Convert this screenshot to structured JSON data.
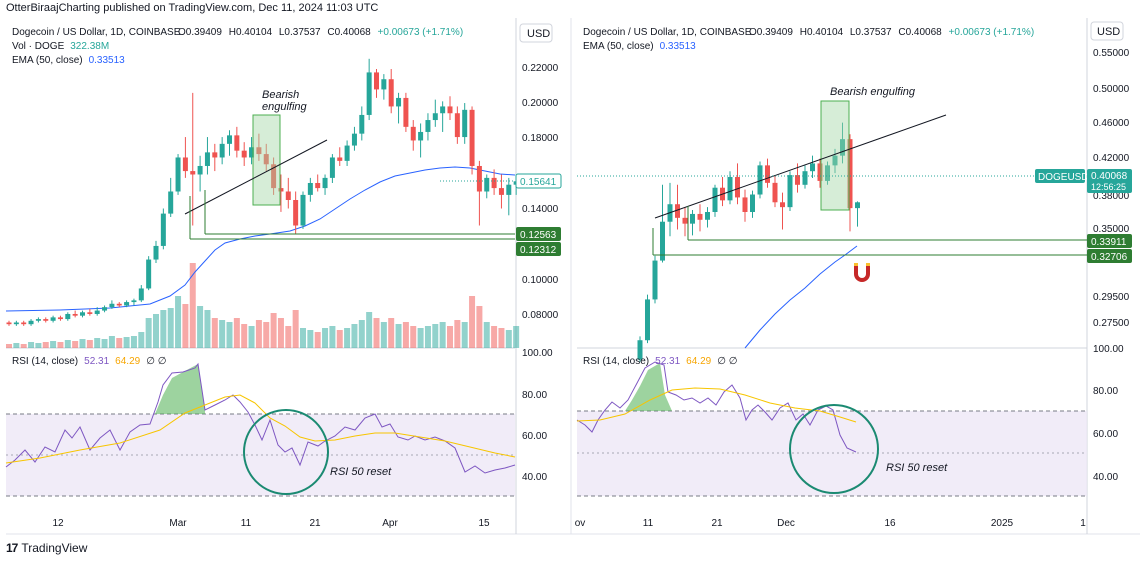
{
  "header": {
    "publisher": "OtterBiraajCharting published on TradingView.com, Dec 11, 2024 11:03 UTC"
  },
  "footer": {
    "brand": "TradingView"
  },
  "colors": {
    "up": "#26a69a",
    "down": "#ef5350",
    "ema": "#2962ff",
    "rsi": "#7e57c2",
    "rsi_ma": "#f7c500",
    "support": "#2e7d32",
    "circle": "#1b8a72",
    "text": "#131722"
  },
  "chart_data": [
    {
      "type": "candlestick",
      "panel": "left",
      "symbol_line": "Dogecoin / US Dollar, 1D, COINBASE",
      "ohlc_label": {
        "o": "O0.39409",
        "h": "H0.40104",
        "l": "L0.37537",
        "c": "C0.40068",
        "chg": "+0.00673 (+1.71%)"
      },
      "vol_label": "Vol · DOGE",
      "vol_value": "322.38M",
      "ema_label": "EMA (50, close)",
      "ema_value": "0.33513",
      "currency": "USD",
      "ylim": [
        0.058,
        0.232
      ],
      "y_ticks": [
        "0.22000",
        "0.20000",
        "0.18000",
        "0.14000",
        "0.10000",
        "0.08000"
      ],
      "x_ticks": [
        "12",
        "Mar",
        "11",
        "21",
        "Apr",
        "15"
      ],
      "price_badges": [
        {
          "label": "0.15641",
          "value": 0.15641,
          "style": "outline"
        },
        {
          "label": "0.12563",
          "value": 0.12563,
          "style": "green"
        },
        {
          "label": "0.12312",
          "value": 0.12312,
          "style": "green"
        }
      ],
      "annotations": [
        "Bearish",
        "engulfing",
        "RSI 50 reset"
      ],
      "rsi_label": "RSI (14, close)",
      "rsi_value": "52.31",
      "rsi_ma_value": "64.29",
      "rsi_nil": "∅ ∅",
      "rsi_ticks": [
        "100.00",
        "80.00",
        "60.00",
        "40.00"
      ],
      "rsi_levels": [
        70,
        50,
        30
      ]
    },
    {
      "type": "candlestick",
      "panel": "right",
      "symbol_line": "Dogecoin / US Dollar, 1D, COINBASE",
      "ohlc_label": {
        "o": "O0.39409",
        "h": "H0.40104",
        "l": "L0.37537",
        "c": "C0.40068",
        "chg": "+0.00673 (+1.71%)"
      },
      "ema_label": "EMA (50, close)",
      "ema_value": "0.33513",
      "currency": "USD",
      "ylim": [
        0.25,
        0.565
      ],
      "y_ticks": [
        "0.55000",
        "0.50000",
        "0.46000",
        "0.42000",
        "0.38000",
        "0.35000",
        "0.29500",
        "0.27500"
      ],
      "x_ticks": [
        "ov",
        "11",
        "21",
        "Dec",
        "16",
        "2025",
        "1"
      ],
      "price_badges": [
        {
          "label": "DOGEUSD",
          "value": 0.40068,
          "style": "green"
        },
        {
          "label": "0.40068",
          "value": 0.40068,
          "style": "green"
        },
        {
          "label": "12:56:25",
          "value": 0.39,
          "style": "green"
        },
        {
          "label": "0.33911",
          "value": 0.33911,
          "style": "green"
        },
        {
          "label": "0.32706",
          "value": 0.32706,
          "style": "green"
        }
      ],
      "annotations": [
        "Bearish engulfing",
        "RSI 50 reset"
      ],
      "rsi_label": "RSI (14, close)",
      "rsi_value": "52.31",
      "rsi_ma_value": "64.29",
      "rsi_nil": "∅ ∅",
      "rsi_ticks": [
        "100.00",
        "80.00",
        "60.00",
        "40.00"
      ],
      "rsi_levels": [
        70,
        50,
        30
      ]
    }
  ]
}
